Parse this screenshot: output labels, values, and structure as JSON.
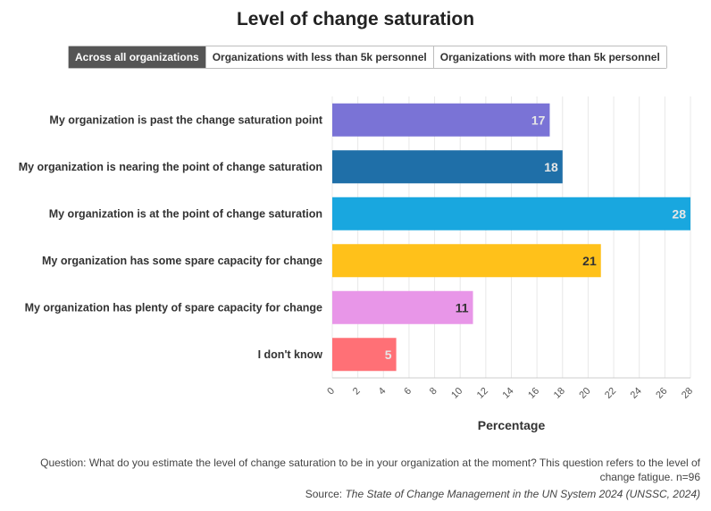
{
  "title": "Level of change saturation",
  "tabs": [
    {
      "label": "Across all organizations",
      "active": true
    },
    {
      "label": "Organizations with less than 5k personnel",
      "active": false
    },
    {
      "label": "Organizations with more than 5k personnel",
      "active": false
    }
  ],
  "chart_data": {
    "type": "bar",
    "orientation": "horizontal",
    "categories": [
      "My organization is past the change saturation point",
      "My organization is nearing the point of change saturation",
      "My organization is at the point of change saturation",
      "My organization has some spare capacity for change",
      "My organization has plenty of spare capacity for change",
      "I don't know"
    ],
    "values": [
      17,
      18,
      28,
      21,
      11,
      5
    ],
    "colors": [
      "#7a73d6",
      "#1f6fa8",
      "#19a7df",
      "#ffc11a",
      "#e896e8",
      "#ff7076"
    ],
    "label_colors": [
      "#e6e6e6",
      "#e6e6e6",
      "#e6e6e6",
      "#333333",
      "#333333",
      "#e6e6e6"
    ],
    "xlabel": "Percentage",
    "xlim": [
      0,
      28
    ],
    "xticks": [
      0,
      2,
      4,
      6,
      8,
      10,
      12,
      14,
      16,
      18,
      20,
      22,
      24,
      26,
      28
    ],
    "grid": true
  },
  "footer": {
    "question": "Question: What do you estimate the level of change saturation to be in your organization at the moment? This question refers to the level of change fatigue. n=96",
    "source_prefix": "Source: ",
    "source_title": "The State of Change Management in the UN System 2024 (UNSSC, 2024)"
  }
}
